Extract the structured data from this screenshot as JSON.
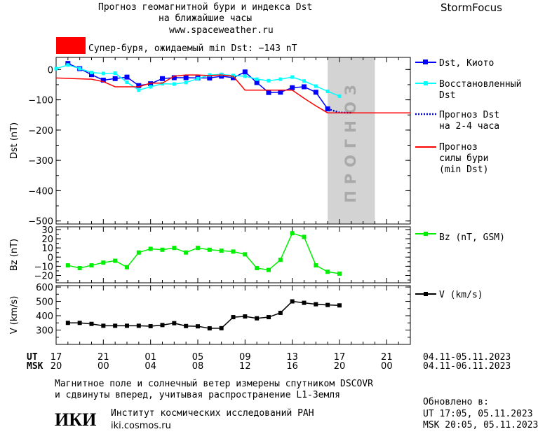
{
  "header": {
    "title_line1": "Прогноз геомагнитной бури и индекса Dst",
    "title_line2": "на ближайшие часы",
    "site": "www.spaceweather.ru",
    "brand": "StormFocus"
  },
  "alert": {
    "color": "#ff0000",
    "text": "Супер-буря, ожидаемый min Dst: −143 nT"
  },
  "legend": {
    "dst_kyoto": "Dst, Киото",
    "restored_line1": "Восстановленный",
    "restored_line2": "Dst",
    "forecast_line1": "Прогноз Dst",
    "forecast_line2": "на 2-4 часа",
    "storm_line1": "Прогноз",
    "storm_line2": "силы бури",
    "storm_line3": "(min Dst)",
    "bz": "Bz (nT, GSM)",
    "v": "V (km/s)"
  },
  "forecast_band_label": "ПРОГНОЗ",
  "chart_data": {
    "type": "line",
    "colors": {
      "dst_kyoto": "#0000ff",
      "dst_restored": "#00ffff",
      "dst_forecast": "#0000cc",
      "storm_forecast": "#ff0000",
      "bz": "#00ee00",
      "v": "#000000",
      "forecast_band": "#d3d3d3"
    },
    "x_range": [
      17,
      47
    ],
    "forecast_band": [
      40,
      44
    ],
    "x_ticks": [
      17,
      21,
      25,
      29,
      33,
      37,
      41,
      45
    ],
    "x_labels_ut": [
      "17",
      "21",
      "01",
      "05",
      "09",
      "13",
      "17",
      "21"
    ],
    "x_labels_msk": [
      "20",
      "00",
      "04",
      "08",
      "12",
      "16",
      "20",
      "00"
    ],
    "ut_label": "UT",
    "msk_label": "MSK",
    "ut_range": "04.11-05.11.2023",
    "msk_range": "04.11-06.11.2023",
    "panels": [
      {
        "name": "dst",
        "ylabel": "Dst (nT)",
        "ylim": [
          -510,
          40
        ],
        "yticks": [
          0,
          -100,
          -200,
          -300,
          -400,
          -500
        ],
        "series": [
          {
            "name": "Dst, Киото",
            "x": [
              18,
              19,
              20,
              21,
              22,
              23,
              24,
              25,
              26,
              27,
              28,
              29,
              30,
              31,
              32,
              33,
              34,
              35,
              36,
              37,
              38,
              39,
              40
            ],
            "values": [
              20,
              3,
              -17,
              -35,
              -30,
              -25,
              -53,
              -47,
              -30,
              -27,
              -27,
              -28,
              -28,
              -22,
              -27,
              -8,
              -43,
              -76,
              -75,
              -60,
              -57,
              -75,
              -130
            ]
          },
          {
            "name": "Восстановленный Dst",
            "x": [
              17,
              18,
              19,
              20,
              21,
              22,
              23,
              24,
              25,
              26,
              27,
              28,
              29,
              30,
              31,
              32,
              33,
              34,
              35,
              36,
              37,
              38,
              39,
              40,
              41
            ],
            "values": [
              3,
              15,
              3,
              -10,
              -13,
              -12,
              -42,
              -68,
              -57,
              -47,
              -48,
              -43,
              -30,
              -18,
              -16,
              -20,
              -22,
              -32,
              -37,
              -32,
              -25,
              -38,
              -55,
              -72,
              -88
            ]
          },
          {
            "name": "Прогноз Dst на 2-4 часа",
            "x": [
              40,
              41,
              42
            ],
            "values": [
              -130,
              -142,
              -143
            ]
          },
          {
            "name": "Прогноз силы бури (min Dst)",
            "x": [
              17,
              20,
              21,
              22,
              23,
              24,
              25,
              26,
              27,
              28,
              29,
              30,
              31,
              32,
              33,
              34,
              35,
              36,
              37,
              38,
              39,
              40,
              42,
              44,
              47
            ],
            "values": [
              -28,
              -32,
              -40,
              -57,
              -57,
              -57,
              -45,
              -45,
              -22,
              -18,
              -18,
              -20,
              -18,
              -22,
              -68,
              -68,
              -68,
              -68,
              -68,
              -95,
              -120,
              -143,
              -143,
              -143,
              -143
            ]
          }
        ]
      },
      {
        "name": "bz",
        "ylabel": "Bz (nT)",
        "ylim": [
          -28,
          33
        ],
        "yticks": [
          30,
          20,
          10,
          0,
          -10,
          -20
        ],
        "series": [
          {
            "name": "Bz (nT, GSM)",
            "x": [
              18,
              19,
              20,
              21,
              22,
              23,
              24,
              25,
              26,
              27,
              28,
              29,
              30,
              31,
              32,
              33,
              34,
              35,
              36,
              37,
              38,
              39,
              40,
              41
            ],
            "values": [
              -9,
              -12,
              -9,
              -6,
              -4,
              -11,
              5,
              9,
              8,
              10,
              5,
              10,
              8,
              7,
              6,
              3,
              -12,
              -14,
              -3,
              26,
              22,
              -9,
              -16,
              -18
            ]
          }
        ]
      },
      {
        "name": "v",
        "ylabel": "V (km/s)",
        "ylim": [
          200,
          610
        ],
        "yticks": [
          600,
          500,
          400,
          300
        ],
        "series": [
          {
            "name": "V (km/s)",
            "x": [
              18,
              19,
              20,
              21,
              22,
              23,
              24,
              25,
              26,
              27,
              28,
              29,
              30,
              31,
              32,
              33,
              34,
              35,
              36,
              37,
              38,
              39,
              40,
              41
            ],
            "values": [
              350,
              350,
              343,
              330,
              330,
              330,
              330,
              327,
              335,
              348,
              328,
              326,
              312,
              313,
              390,
              395,
              382,
              390,
              420,
              500,
              490,
              480,
              475,
              472
            ]
          }
        ]
      }
    ]
  },
  "footer": {
    "note_line1": "Магнитное поле и солнечный ветер измерены спутником DSCOVR",
    "note_line2": "и сдвинуты вперед, учитывая распространение L1-Земля",
    "institute": "Институт космических исследований РАН",
    "institute_url": "iki.cosmos.ru",
    "logo_text": "ИКИ",
    "updated_label": "Обновлено в:",
    "updated_ut": "UT  17:05, 05.11.2023",
    "updated_msk": "MSK 20:05, 05.11.2023"
  }
}
